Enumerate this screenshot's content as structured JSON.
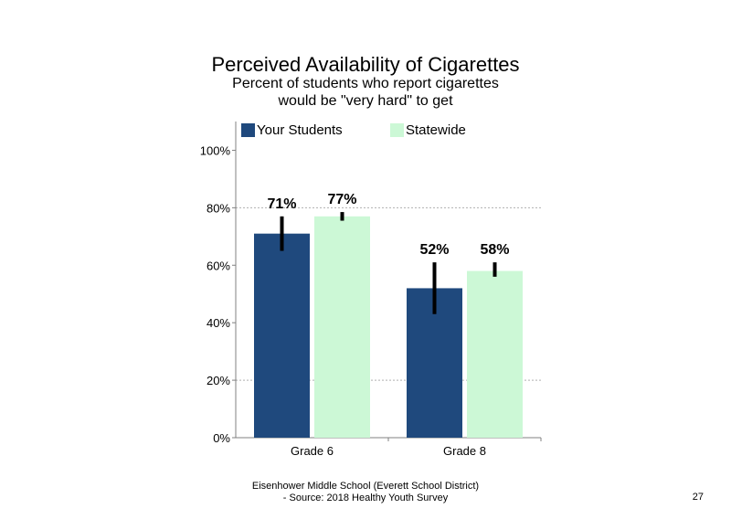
{
  "title": "Perceived Availability of Cigarettes",
  "subtitle_lines": [
    "Percent of students who report cigarettes",
    "would be \"very hard\" to get"
  ],
  "legend": [
    {
      "label": "Your Students",
      "color": "#1f497d"
    },
    {
      "label": "Statewide",
      "color": "#ccf8d6"
    }
  ],
  "chart_data": {
    "type": "bar",
    "categories": [
      "Grade 6",
      "Grade 8"
    ],
    "series": [
      {
        "name": "Your Students",
        "color": "#1f497d",
        "values": [
          71,
          52
        ],
        "labels": [
          "71%",
          "52%"
        ],
        "error_low": [
          65,
          43
        ],
        "error_high": [
          77,
          61
        ]
      },
      {
        "name": "Statewide",
        "color": "#ccf8d6",
        "values": [
          77,
          58
        ],
        "labels": [
          "77%",
          "58%"
        ],
        "error_low": [
          75.5,
          56
        ],
        "error_high": [
          78.5,
          61
        ]
      }
    ],
    "ylim": [
      0,
      110
    ],
    "yticks": [
      0,
      20,
      40,
      60,
      80,
      100
    ],
    "ytick_labels": [
      "0%",
      "20%",
      "40%",
      "60%",
      "80%",
      "100%"
    ],
    "gridlines": [
      20,
      80
    ],
    "legend_position": "top"
  },
  "footer": {
    "line1": "Eisenhower Middle School (Everett School District)",
    "line2": "- Source: 2018 Healthy  Youth Survey"
  },
  "page_number": "27"
}
